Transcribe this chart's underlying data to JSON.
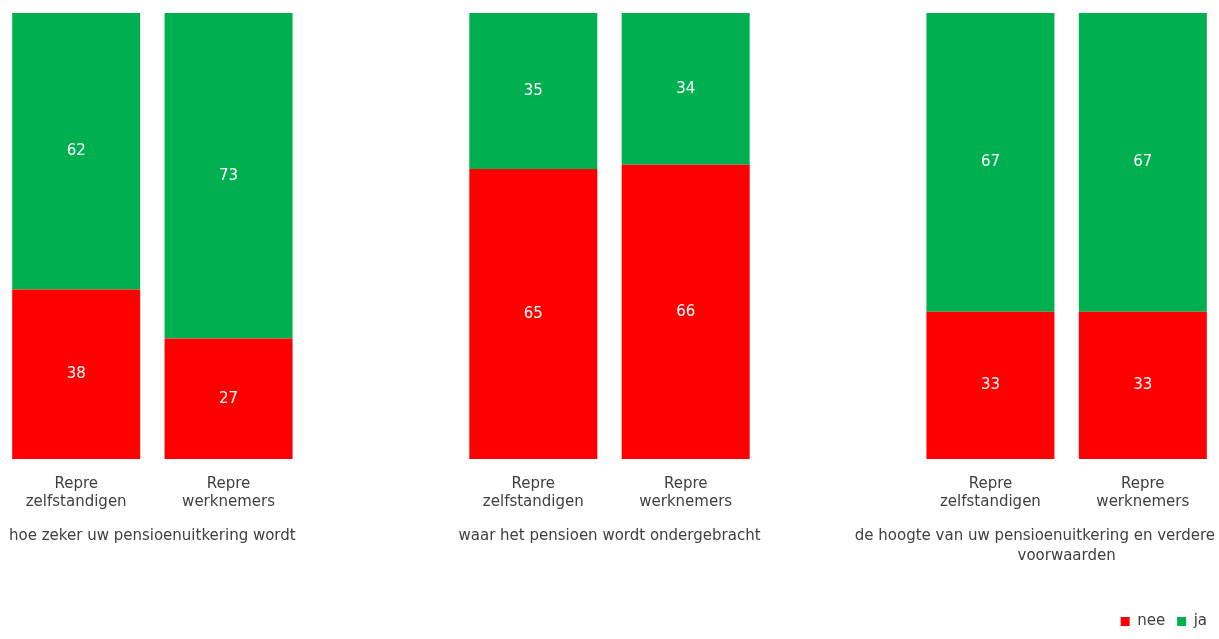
{
  "chart_data": {
    "type": "bar",
    "stacked": true,
    "data_labels": true,
    "grid": false,
    "legend": "bottom right",
    "categories": [
      "Repre zelfstandigen",
      "Repre werknemers",
      null,
      "Repre zelfstandigen",
      "Repre werknemers",
      null,
      "Repre zelfstandigen",
      "Repre werknemers"
    ],
    "series": [
      {
        "name": "nee",
        "color": "#ff0000",
        "values": [
          38,
          27,
          null,
          65,
          66,
          null,
          33,
          33
        ]
      },
      {
        "name": "ja",
        "color": "#00b050",
        "values": [
          62,
          73,
          null,
          35,
          34,
          null,
          67,
          67
        ]
      }
    ],
    "annotations": [
      "hoe zeker uw pensioenuitkering wordt",
      "waar het pensioen wordt ondergebracht",
      "de hoogte van uw pensioenuitkering en verdere voorwaarden"
    ]
  }
}
